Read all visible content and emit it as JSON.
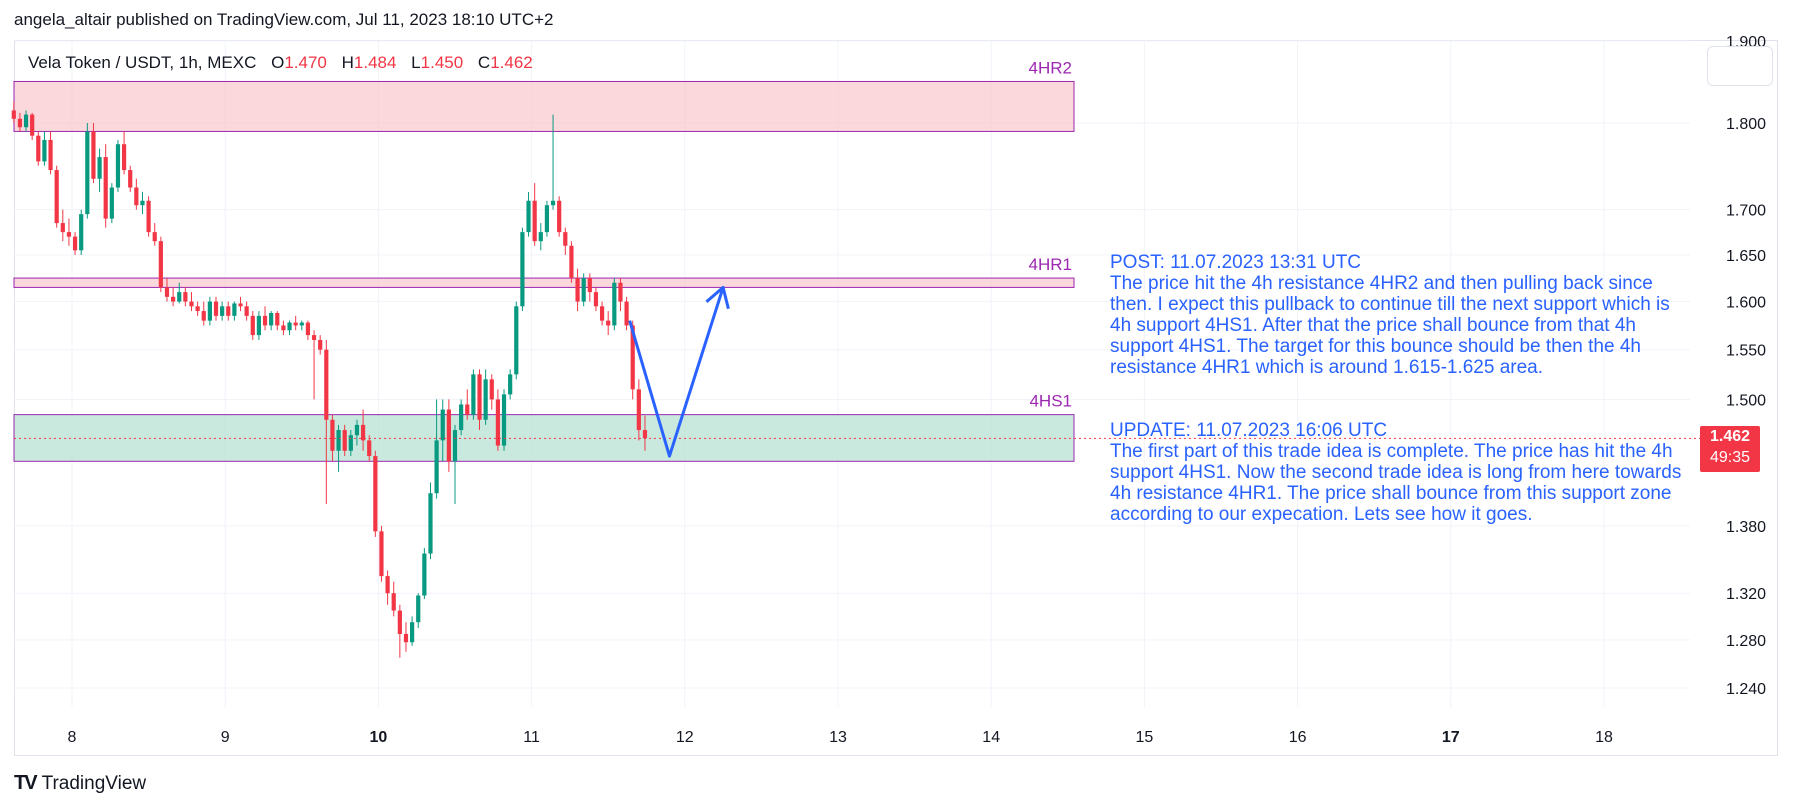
{
  "publisher_line": "angela_altair published on TradingView.com, Jul 11, 2023 18:10 UTC+2",
  "legend": {
    "symbol": "Vela Token / USDT, 1h, MEXC",
    "o_label": "O",
    "o": "1.470",
    "h_label": "H",
    "h": "1.484",
    "l_label": "L",
    "l": "1.450",
    "c_label": "C",
    "c": "1.462"
  },
  "price_badge": {
    "price": "1.462",
    "countdown": "49:35"
  },
  "brand": "TradingView",
  "note_post": {
    "heading": "POST: 11.07.2023 13:31 UTC",
    "body": "The price hit the 4h resistance 4HR2 and then pulling back since then. I expect this pullback to continue till the next support which is 4h support 4HS1. After that the price shall bounce from that 4h support 4HS1. The target for this bounce should be then the 4h resistance 4HR1 which is around 1.615-1.625 area."
  },
  "note_update": {
    "heading": "UPDATE: 11.07.2023 16:06 UTC",
    "body": "The first part of this trade idea is complete. The price has hit the 4h support 4HS1. Now the second trade idea is long from here towards 4h resistance 4HR1. The price shall bounce from this support zone according to our expecation. Lets see how it goes."
  },
  "chart_data": {
    "type": "candlestick",
    "timeframe": "1h",
    "y_axis": {
      "ticks": [
        1.24,
        1.28,
        1.32,
        1.38,
        1.5,
        1.55,
        1.6,
        1.65,
        1.7,
        1.8,
        1.9
      ],
      "tick_labels": [
        "1.240",
        "1.280",
        "1.320",
        "1.380",
        "1.500",
        "1.550",
        "1.600",
        "1.650",
        "1.700",
        "1.800",
        "1.900"
      ],
      "scale": "log"
    },
    "x_axis": {
      "tick_labels": [
        "8",
        "9",
        "10",
        "11",
        "12",
        "13",
        "14",
        "15",
        "16",
        "17",
        "18"
      ],
      "bold": [
        "10",
        "17"
      ],
      "day_start": 7.6,
      "day_end": 18.4
    },
    "zones": [
      {
        "label": "4HR2",
        "low": 1.79,
        "high": 1.85,
        "fill": "#f8c8cc",
        "border": "#9c27b0"
      },
      {
        "label": "4HR1",
        "low": 1.615,
        "high": 1.625,
        "fill": "#f8c8cc",
        "border": "#9c27b0"
      },
      {
        "label": "4HS1",
        "low": 1.44,
        "high": 1.485,
        "fill": "#b2dfd0",
        "border": "#9c27b0"
      }
    ],
    "last_price": 1.462,
    "projection_path": [
      {
        "day": 11.64,
        "price": 1.58
      },
      {
        "day": 11.9,
        "price": 1.445
      },
      {
        "day": 12.25,
        "price": 1.615
      }
    ],
    "candles": [
      {
        "t": 7.62,
        "o": 1.815,
        "h": 1.825,
        "l": 1.8,
        "c": 1.805
      },
      {
        "t": 7.66,
        "o": 1.805,
        "h": 1.812,
        "l": 1.79,
        "c": 1.795
      },
      {
        "t": 7.7,
        "o": 1.795,
        "h": 1.815,
        "l": 1.79,
        "c": 1.81
      },
      {
        "t": 7.74,
        "o": 1.81,
        "h": 1.812,
        "l": 1.78,
        "c": 1.785
      },
      {
        "t": 7.78,
        "o": 1.785,
        "h": 1.79,
        "l": 1.75,
        "c": 1.755
      },
      {
        "t": 7.82,
        "o": 1.755,
        "h": 1.79,
        "l": 1.75,
        "c": 1.78
      },
      {
        "t": 7.86,
        "o": 1.78,
        "h": 1.79,
        "l": 1.74,
        "c": 1.745
      },
      {
        "t": 7.9,
        "o": 1.745,
        "h": 1.75,
        "l": 1.68,
        "c": 1.685
      },
      {
        "t": 7.94,
        "o": 1.685,
        "h": 1.7,
        "l": 1.665,
        "c": 1.675
      },
      {
        "t": 7.98,
        "o": 1.675,
        "h": 1.69,
        "l": 1.66,
        "c": 1.67
      },
      {
        "t": 8.02,
        "o": 1.67,
        "h": 1.675,
        "l": 1.65,
        "c": 1.655
      },
      {
        "t": 8.06,
        "o": 1.655,
        "h": 1.7,
        "l": 1.65,
        "c": 1.695
      },
      {
        "t": 8.1,
        "o": 1.695,
        "h": 1.8,
        "l": 1.69,
        "c": 1.79
      },
      {
        "t": 8.14,
        "o": 1.79,
        "h": 1.8,
        "l": 1.73,
        "c": 1.735
      },
      {
        "t": 8.18,
        "o": 1.735,
        "h": 1.77,
        "l": 1.72,
        "c": 1.76
      },
      {
        "t": 8.22,
        "o": 1.76,
        "h": 1.775,
        "l": 1.68,
        "c": 1.69
      },
      {
        "t": 8.26,
        "o": 1.69,
        "h": 1.73,
        "l": 1.685,
        "c": 1.725
      },
      {
        "t": 8.3,
        "o": 1.725,
        "h": 1.78,
        "l": 1.72,
        "c": 1.775
      },
      {
        "t": 8.34,
        "o": 1.775,
        "h": 1.79,
        "l": 1.74,
        "c": 1.745
      },
      {
        "t": 8.38,
        "o": 1.745,
        "h": 1.75,
        "l": 1.72,
        "c": 1.725
      },
      {
        "t": 8.42,
        "o": 1.725,
        "h": 1.735,
        "l": 1.7,
        "c": 1.705
      },
      {
        "t": 8.46,
        "o": 1.705,
        "h": 1.72,
        "l": 1.695,
        "c": 1.71
      },
      {
        "t": 8.5,
        "o": 1.71,
        "h": 1.715,
        "l": 1.67,
        "c": 1.675
      },
      {
        "t": 8.54,
        "o": 1.675,
        "h": 1.685,
        "l": 1.66,
        "c": 1.665
      },
      {
        "t": 8.58,
        "o": 1.665,
        "h": 1.67,
        "l": 1.61,
        "c": 1.615
      },
      {
        "t": 8.62,
        "o": 1.615,
        "h": 1.625,
        "l": 1.6,
        "c": 1.605
      },
      {
        "t": 8.66,
        "o": 1.605,
        "h": 1.615,
        "l": 1.595,
        "c": 1.6
      },
      {
        "t": 8.7,
        "o": 1.6,
        "h": 1.62,
        "l": 1.598,
        "c": 1.61
      },
      {
        "t": 8.74,
        "o": 1.61,
        "h": 1.615,
        "l": 1.595,
        "c": 1.6
      },
      {
        "t": 8.78,
        "o": 1.6,
        "h": 1.61,
        "l": 1.59,
        "c": 1.595
      },
      {
        "t": 8.82,
        "o": 1.595,
        "h": 1.6,
        "l": 1.585,
        "c": 1.59
      },
      {
        "t": 8.86,
        "o": 1.59,
        "h": 1.6,
        "l": 1.575,
        "c": 1.58
      },
      {
        "t": 8.9,
        "o": 1.58,
        "h": 1.605,
        "l": 1.575,
        "c": 1.6
      },
      {
        "t": 8.94,
        "o": 1.6,
        "h": 1.605,
        "l": 1.58,
        "c": 1.585
      },
      {
        "t": 8.98,
        "o": 1.585,
        "h": 1.6,
        "l": 1.58,
        "c": 1.595
      },
      {
        "t": 9.02,
        "o": 1.595,
        "h": 1.6,
        "l": 1.58,
        "c": 1.585
      },
      {
        "t": 9.06,
        "o": 1.585,
        "h": 1.6,
        "l": 1.58,
        "c": 1.598
      },
      {
        "t": 9.1,
        "o": 1.598,
        "h": 1.605,
        "l": 1.59,
        "c": 1.595
      },
      {
        "t": 9.14,
        "o": 1.595,
        "h": 1.6,
        "l": 1.58,
        "c": 1.585
      },
      {
        "t": 9.18,
        "o": 1.585,
        "h": 1.59,
        "l": 1.56,
        "c": 1.565
      },
      {
        "t": 9.22,
        "o": 1.565,
        "h": 1.59,
        "l": 1.56,
        "c": 1.585
      },
      {
        "t": 9.26,
        "o": 1.585,
        "h": 1.595,
        "l": 1.57,
        "c": 1.575
      },
      {
        "t": 9.3,
        "o": 1.575,
        "h": 1.59,
        "l": 1.57,
        "c": 1.588
      },
      {
        "t": 9.34,
        "o": 1.588,
        "h": 1.59,
        "l": 1.57,
        "c": 1.575
      },
      {
        "t": 9.38,
        "o": 1.575,
        "h": 1.58,
        "l": 1.565,
        "c": 1.57
      },
      {
        "t": 9.42,
        "o": 1.57,
        "h": 1.58,
        "l": 1.565,
        "c": 1.578
      },
      {
        "t": 9.46,
        "o": 1.578,
        "h": 1.585,
        "l": 1.57,
        "c": 1.575
      },
      {
        "t": 9.5,
        "o": 1.575,
        "h": 1.58,
        "l": 1.57,
        "c": 1.578
      },
      {
        "t": 9.54,
        "o": 1.578,
        "h": 1.58,
        "l": 1.56,
        "c": 1.565
      },
      {
        "t": 9.58,
        "o": 1.565,
        "h": 1.57,
        "l": 1.5,
        "c": 1.56
      },
      {
        "t": 9.62,
        "o": 1.56,
        "h": 1.565,
        "l": 1.545,
        "c": 1.55
      },
      {
        "t": 9.66,
        "o": 1.55,
        "h": 1.56,
        "l": 1.4,
        "c": 1.48
      },
      {
        "t": 9.7,
        "o": 1.48,
        "h": 1.485,
        "l": 1.44,
        "c": 1.45
      },
      {
        "t": 9.74,
        "o": 1.45,
        "h": 1.475,
        "l": 1.43,
        "c": 1.47
      },
      {
        "t": 9.78,
        "o": 1.47,
        "h": 1.475,
        "l": 1.445,
        "c": 1.45
      },
      {
        "t": 9.82,
        "o": 1.45,
        "h": 1.47,
        "l": 1.445,
        "c": 1.465
      },
      {
        "t": 9.86,
        "o": 1.465,
        "h": 1.48,
        "l": 1.455,
        "c": 1.475
      },
      {
        "t": 9.9,
        "o": 1.475,
        "h": 1.49,
        "l": 1.45,
        "c": 1.46
      },
      {
        "t": 9.94,
        "o": 1.46,
        "h": 1.465,
        "l": 1.44,
        "c": 1.445
      },
      {
        "t": 9.98,
        "o": 1.445,
        "h": 1.45,
        "l": 1.37,
        "c": 1.375
      },
      {
        "t": 10.02,
        "o": 1.375,
        "h": 1.38,
        "l": 1.33,
        "c": 1.335
      },
      {
        "t": 10.06,
        "o": 1.335,
        "h": 1.34,
        "l": 1.31,
        "c": 1.32
      },
      {
        "t": 10.1,
        "o": 1.32,
        "h": 1.33,
        "l": 1.3,
        "c": 1.305
      },
      {
        "t": 10.14,
        "o": 1.305,
        "h": 1.31,
        "l": 1.265,
        "c": 1.285
      },
      {
        "t": 10.18,
        "o": 1.285,
        "h": 1.295,
        "l": 1.27,
        "c": 1.278
      },
      {
        "t": 10.22,
        "o": 1.278,
        "h": 1.3,
        "l": 1.275,
        "c": 1.295
      },
      {
        "t": 10.26,
        "o": 1.295,
        "h": 1.32,
        "l": 1.29,
        "c": 1.318
      },
      {
        "t": 10.3,
        "o": 1.318,
        "h": 1.36,
        "l": 1.315,
        "c": 1.355
      },
      {
        "t": 10.34,
        "o": 1.355,
        "h": 1.42,
        "l": 1.35,
        "c": 1.41
      },
      {
        "t": 10.38,
        "o": 1.41,
        "h": 1.5,
        "l": 1.405,
        "c": 1.46
      },
      {
        "t": 10.42,
        "o": 1.46,
        "h": 1.5,
        "l": 1.44,
        "c": 1.49
      },
      {
        "t": 10.46,
        "o": 1.49,
        "h": 1.5,
        "l": 1.43,
        "c": 1.44
      },
      {
        "t": 10.5,
        "o": 1.44,
        "h": 1.475,
        "l": 1.4,
        "c": 1.47
      },
      {
        "t": 10.54,
        "o": 1.47,
        "h": 1.5,
        "l": 1.465,
        "c": 1.495
      },
      {
        "t": 10.58,
        "o": 1.495,
        "h": 1.51,
        "l": 1.48,
        "c": 1.485
      },
      {
        "t": 10.62,
        "o": 1.485,
        "h": 1.53,
        "l": 1.48,
        "c": 1.525
      },
      {
        "t": 10.66,
        "o": 1.525,
        "h": 1.53,
        "l": 1.47,
        "c": 1.48
      },
      {
        "t": 10.7,
        "o": 1.48,
        "h": 1.53,
        "l": 1.475,
        "c": 1.52
      },
      {
        "t": 10.74,
        "o": 1.52,
        "h": 1.525,
        "l": 1.49,
        "c": 1.5
      },
      {
        "t": 10.78,
        "o": 1.5,
        "h": 1.51,
        "l": 1.45,
        "c": 1.455
      },
      {
        "t": 10.82,
        "o": 1.455,
        "h": 1.51,
        "l": 1.45,
        "c": 1.505
      },
      {
        "t": 10.86,
        "o": 1.505,
        "h": 1.53,
        "l": 1.5,
        "c": 1.525
      },
      {
        "t": 10.9,
        "o": 1.525,
        "h": 1.6,
        "l": 1.52,
        "c": 1.595
      },
      {
        "t": 10.94,
        "o": 1.595,
        "h": 1.68,
        "l": 1.59,
        "c": 1.675
      },
      {
        "t": 10.98,
        "o": 1.675,
        "h": 1.72,
        "l": 1.67,
        "c": 1.71
      },
      {
        "t": 11.02,
        "o": 1.71,
        "h": 1.73,
        "l": 1.66,
        "c": 1.665
      },
      {
        "t": 11.06,
        "o": 1.665,
        "h": 1.685,
        "l": 1.655,
        "c": 1.675
      },
      {
        "t": 11.1,
        "o": 1.675,
        "h": 1.71,
        "l": 1.67,
        "c": 1.705
      },
      {
        "t": 11.14,
        "o": 1.705,
        "h": 1.81,
        "l": 1.7,
        "c": 1.71
      },
      {
        "t": 11.18,
        "o": 1.71,
        "h": 1.715,
        "l": 1.67,
        "c": 1.675
      },
      {
        "t": 11.22,
        "o": 1.675,
        "h": 1.68,
        "l": 1.65,
        "c": 1.66
      },
      {
        "t": 11.26,
        "o": 1.66,
        "h": 1.665,
        "l": 1.62,
        "c": 1.625
      },
      {
        "t": 11.3,
        "o": 1.625,
        "h": 1.635,
        "l": 1.59,
        "c": 1.6
      },
      {
        "t": 11.34,
        "o": 1.6,
        "h": 1.63,
        "l": 1.595,
        "c": 1.625
      },
      {
        "t": 11.38,
        "o": 1.625,
        "h": 1.63,
        "l": 1.6,
        "c": 1.61
      },
      {
        "t": 11.42,
        "o": 1.61,
        "h": 1.615,
        "l": 1.59,
        "c": 1.595
      },
      {
        "t": 11.46,
        "o": 1.595,
        "h": 1.6,
        "l": 1.575,
        "c": 1.58
      },
      {
        "t": 11.5,
        "o": 1.58,
        "h": 1.59,
        "l": 1.565,
        "c": 1.575
      },
      {
        "t": 11.54,
        "o": 1.575,
        "h": 1.625,
        "l": 1.57,
        "c": 1.62
      },
      {
        "t": 11.58,
        "o": 1.62,
        "h": 1.625,
        "l": 1.59,
        "c": 1.6
      },
      {
        "t": 11.62,
        "o": 1.6,
        "h": 1.605,
        "l": 1.57,
        "c": 1.575
      },
      {
        "t": 11.66,
        "o": 1.575,
        "h": 1.58,
        "l": 1.5,
        "c": 1.51
      },
      {
        "t": 11.7,
        "o": 1.51,
        "h": 1.52,
        "l": 1.46,
        "c": 1.47
      },
      {
        "t": 11.74,
        "o": 1.47,
        "h": 1.484,
        "l": 1.45,
        "c": 1.462
      }
    ]
  }
}
